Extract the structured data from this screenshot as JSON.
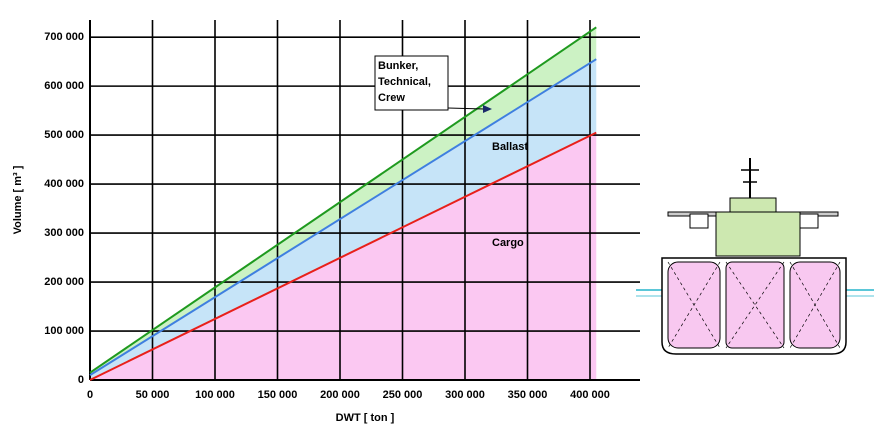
{
  "chart_data": {
    "type": "line",
    "x_label": "DWT [ ton ]",
    "y_label": "Volume [ m³ ]",
    "xlim": [
      0,
      440000
    ],
    "ylim": [
      0,
      735000
    ],
    "xticks": [
      0,
      {
        "value": 50000,
        "label": "50 000"
      },
      {
        "value": 100000,
        "label": "100 000"
      },
      {
        "value": 150000,
        "label": "150 000"
      },
      {
        "value": 200000,
        "label": "200 000"
      },
      {
        "value": 250000,
        "label": "250 000"
      },
      {
        "value": 300000,
        "label": "300 000"
      },
      {
        "value": 350000,
        "label": "350 000"
      },
      {
        "value": 400000,
        "label": "400 000"
      }
    ],
    "yticks": [
      0,
      {
        "value": 100000,
        "label": "100 000"
      },
      {
        "value": 200000,
        "label": "200 000"
      },
      {
        "value": 300000,
        "label": "300 000"
      },
      {
        "value": 400000,
        "label": "400 000"
      },
      {
        "value": 500000,
        "label": "500 000"
      },
      {
        "value": 600000,
        "label": "600 000"
      },
      {
        "value": 700000,
        "label": "700 000"
      }
    ],
    "grid": true,
    "x": [
      0,
      405000
    ],
    "series": [
      {
        "name": "Cargo",
        "color": "#e8201a",
        "fill": "#fbc8f2",
        "values": [
          0,
          505000
        ]
      },
      {
        "name": "Ballast",
        "color": "#3f7fe0",
        "fill": "#c6e4f8",
        "values": [
          10000,
          655000
        ]
      },
      {
        "name": "Bunker,\nTechnical,\nCrew",
        "color": "#1f9a1f",
        "fill": "#ccf2c4",
        "values": [
          15000,
          720000
        ]
      }
    ]
  }
}
